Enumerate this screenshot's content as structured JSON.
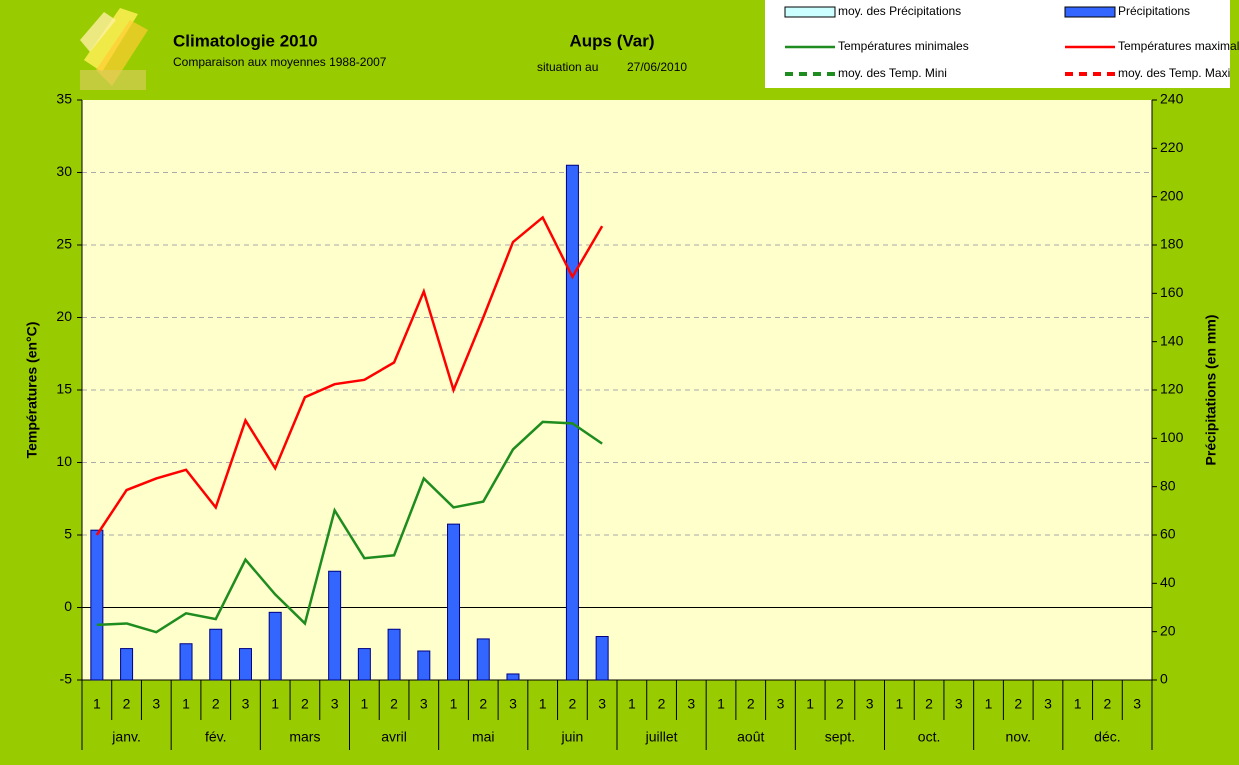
{
  "chart_data": {
    "type": "combo",
    "title": "Climatologie 2010",
    "subtitle": "Comparaison aux moyennes 1988-2007",
    "station": "Aups (Var)",
    "situation_label": "situation au",
    "situation_date": "27/06/2010",
    "ylabel": "Températures (en°C)",
    "y2label": "Précipitations (en mm)",
    "categories": [
      "1",
      "2",
      "3",
      "1",
      "2",
      "3",
      "1",
      "2",
      "3",
      "1",
      "2",
      "3",
      "1",
      "2",
      "3",
      "1",
      "2",
      "3",
      "1",
      "2",
      "3",
      "1",
      "2",
      "3",
      "1",
      "2",
      "3",
      "1",
      "2",
      "3",
      "1",
      "2",
      "3",
      "1",
      "2",
      "3"
    ],
    "category_groups": [
      "janv.",
      "fév.",
      "mars",
      "avril",
      "mai",
      "juin",
      "juillet",
      "août",
      "sept.",
      "oct.",
      "nov.",
      "déc."
    ],
    "ylim": [
      -5,
      35
    ],
    "yticks": [
      -5,
      0,
      5,
      10,
      15,
      20,
      25,
      30,
      35
    ],
    "y2lim": [
      0,
      240
    ],
    "y2ticks": [
      0,
      20,
      40,
      60,
      80,
      100,
      120,
      140,
      160,
      180,
      200,
      220,
      240
    ],
    "grid": true,
    "legend": "top-right",
    "series": [
      {
        "name": "moy. des Précipitations",
        "kind": "bar",
        "axis": "y2",
        "color": "#ccffff",
        "dash": false,
        "values": [
          null,
          null,
          null,
          null,
          null,
          null,
          null,
          null,
          null,
          null,
          null,
          null,
          null,
          null,
          null,
          null,
          null,
          null,
          null,
          null,
          null,
          null,
          null,
          null,
          null,
          null,
          null,
          null,
          null,
          null,
          null,
          null,
          null,
          null,
          null,
          null
        ]
      },
      {
        "name": "Précipitations",
        "kind": "bar",
        "axis": "y2",
        "color": "#3366ff",
        "dash": false,
        "values": [
          62,
          13,
          0,
          15,
          21,
          13,
          28,
          0,
          45,
          13,
          21,
          12,
          64.5,
          17,
          2.5,
          0,
          213,
          18,
          null,
          null,
          null,
          null,
          null,
          null,
          null,
          null,
          null,
          null,
          null,
          null,
          null,
          null,
          null,
          null,
          null,
          null
        ]
      },
      {
        "name": "Températures minimales",
        "kind": "line",
        "axis": "y",
        "color": "#1e8c1e",
        "dash": false,
        "values": [
          -1.2,
          -1.1,
          -1.7,
          -0.4,
          -0.8,
          3.3,
          0.9,
          -1.1,
          6.7,
          3.4,
          3.6,
          8.9,
          6.9,
          7.3,
          10.9,
          12.8,
          12.7,
          11.3,
          null,
          null,
          null,
          null,
          null,
          null,
          null,
          null,
          null,
          null,
          null,
          null,
          null,
          null,
          null,
          null,
          null,
          null
        ]
      },
      {
        "name": "Températures maximales",
        "kind": "line",
        "axis": "y",
        "color": "#ff0000",
        "dash": false,
        "values": [
          5.0,
          8.1,
          8.9,
          9.5,
          6.9,
          12.9,
          9.6,
          14.5,
          15.4,
          15.7,
          16.9,
          21.8,
          15.0,
          20.0,
          25.2,
          26.9,
          22.8,
          26.3,
          null,
          null,
          null,
          null,
          null,
          null,
          null,
          null,
          null,
          null,
          null,
          null,
          null,
          null,
          null,
          null,
          null,
          null
        ]
      },
      {
        "name": "moy. des Temp. Mini",
        "kind": "line",
        "axis": "y",
        "color": "#1e8c1e",
        "dash": true,
        "values": [
          null,
          null,
          null,
          null,
          null,
          null,
          null,
          null,
          null,
          null,
          null,
          null,
          null,
          null,
          null,
          null,
          null,
          null,
          null,
          null,
          null,
          null,
          null,
          null,
          null,
          null,
          null,
          null,
          null,
          null,
          null,
          null,
          null,
          null,
          null,
          null
        ]
      },
      {
        "name": "moy. des Temp. Maxi",
        "kind": "line",
        "axis": "y",
        "color": "#ff0000",
        "dash": true,
        "values": [
          null,
          null,
          null,
          null,
          null,
          null,
          null,
          null,
          null,
          null,
          null,
          null,
          null,
          null,
          null,
          null,
          null,
          null,
          null,
          null,
          null,
          null,
          null,
          null,
          null,
          null,
          null,
          null,
          null,
          null,
          null,
          null,
          null,
          null,
          null,
          null
        ]
      }
    ]
  }
}
